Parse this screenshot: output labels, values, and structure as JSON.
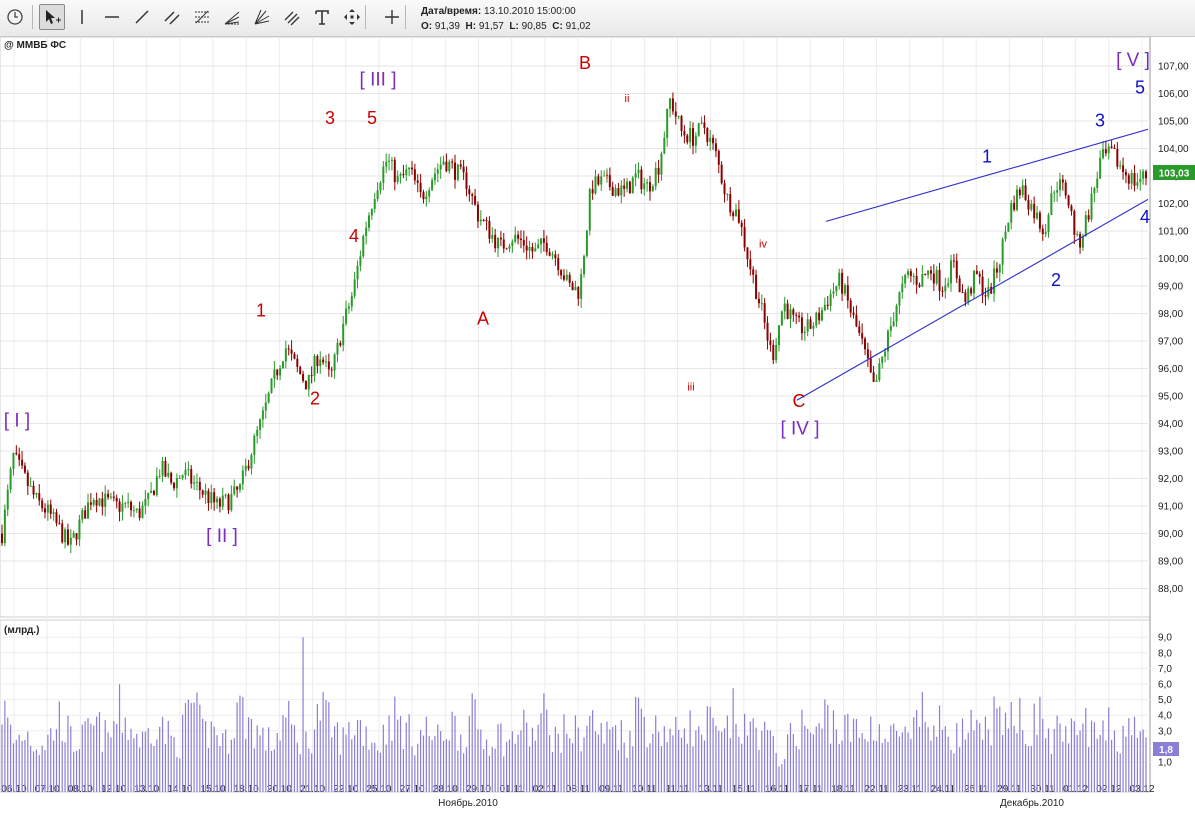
{
  "toolbar": {
    "tools": [
      {
        "name": "clock-icon"
      },
      {
        "name": "cursor-icon",
        "active": true
      },
      {
        "name": "vertical-line-icon"
      },
      {
        "name": "horizontal-line-icon"
      },
      {
        "name": "trend-line-icon"
      },
      {
        "name": "channel-icon"
      },
      {
        "name": "fibonacci-icon"
      },
      {
        "name": "fibonacci-fan-icon"
      },
      {
        "name": "gann-fan-icon"
      },
      {
        "name": "parallel-lines-icon"
      },
      {
        "name": "text-tool-icon"
      },
      {
        "name": "move-icon"
      },
      {
        "name": "crosshair-icon"
      }
    ],
    "datetime_label": "Дата/время:",
    "datetime_value": "13.10.2010 15:00:00",
    "o_label": "O:",
    "o_value": "91,39",
    "h_label": "H:",
    "h_value": "91,57",
    "l_label": "L:",
    "l_value": "90,85",
    "c_label": "C:",
    "c_value": "91,02"
  },
  "chart": {
    "instrument": "@ ММВБ ФС",
    "volume_label": "(млрд.)",
    "last_price": "103,03",
    "last_volume": "1,8",
    "colors": {
      "up": "#2a9a2a",
      "down": "#8b0000",
      "volume": "#8a7fd6",
      "waves_red": "#cc0000",
      "waves_blue": "#1010c8",
      "waves_purple": "#7a2ec0",
      "trendline": "#2b2bcc"
    }
  },
  "chart_data": {
    "type": "candlestick",
    "y_ticks": [
      "107,00",
      "106,00",
      "105,00",
      "104,00",
      "103,00",
      "102,00",
      "101,00",
      "100,00",
      "99,00",
      "98,00",
      "97,00",
      "96,00",
      "95,00",
      "94,00",
      "93,00",
      "92,00",
      "91,00",
      "90,00",
      "89,00",
      "88,00"
    ],
    "volume_ticks": [
      "9,0",
      "8,0",
      "7,0",
      "6,0",
      "5,0",
      "4,0",
      "3,0",
      "2,0",
      "1,0"
    ],
    "x_labels": [
      "06.10",
      "07.10",
      "08.10",
      "12.10",
      "13.10",
      "14.10",
      "15.10",
      "18.10",
      "20.10",
      "21.10",
      "22.10",
      "25.10",
      "27.10",
      "28.10",
      "29.10",
      "01.11",
      "02.11",
      "08.11",
      "09.11",
      "10.11",
      "11.11",
      "13.11",
      "15.11",
      "16.11",
      "17.11",
      "18.11",
      "22.11",
      "23.11",
      "24.11",
      "25.11",
      "29.11",
      "30.11",
      "01.12",
      "02.12",
      "03.12"
    ],
    "month_labels": [
      "Ноябрь.2010",
      "Декабрь.2010"
    ],
    "price_path": [
      90.0,
      92.8,
      92.0,
      91.2,
      90.8,
      90.2,
      89.5,
      90.5,
      91.4,
      91.2,
      91.0,
      91.0,
      90.7,
      91.2,
      92.4,
      91.8,
      92.2,
      91.8,
      91.4,
      91.0,
      91.2,
      91.6,
      93.0,
      94.2,
      95.6,
      96.8,
      96.0,
      95.4,
      96.6,
      95.6,
      97.4,
      98.8,
      101.0,
      102.6,
      103.6,
      102.8,
      103.2,
      102.2,
      103.0,
      103.6,
      103.2,
      102.8,
      101.6,
      101.0,
      100.4,
      100.8,
      100.6,
      100.2,
      100.6,
      100.0,
      99.0,
      98.8,
      102.6,
      102.8,
      102.6,
      102.4,
      103.0,
      102.6,
      103.4,
      105.8,
      104.6,
      104.4,
      104.8,
      103.8,
      102.2,
      101.6,
      99.8,
      98.2,
      96.4,
      98.4,
      97.6,
      97.4,
      97.8,
      98.6,
      99.2,
      98.0,
      96.8,
      95.2,
      96.8,
      98.4,
      99.4,
      99.2,
      99.6,
      99.0,
      99.8,
      98.4,
      99.4,
      98.6,
      99.8,
      101.8,
      102.6,
      101.8,
      101.0,
      102.8,
      102.4,
      100.4,
      101.8,
      103.6,
      103.8,
      103.2,
      102.8,
      103.0
    ],
    "volume_path": [
      4.6,
      2.2,
      3.0,
      2.0,
      2.5,
      4.0,
      2.1,
      2.6,
      3.3,
      2.4,
      4.2,
      3.0,
      2.3,
      3.8,
      2.7,
      2.0,
      4.9,
      2.8,
      3.1,
      2.2,
      4.6,
      3.5,
      2.6,
      2.1,
      3.9,
      2.5,
      2.2,
      4.4,
      3.0,
      2.4,
      3.6,
      2.8,
      2.0,
      4.1,
      3.2,
      2.5,
      3.0,
      2.4,
      3.6,
      2.6,
      3.9,
      2.3,
      2.9,
      2.1,
      3.3,
      2.6,
      4.0,
      2.4,
      3.1,
      2.7,
      3.7,
      2.5,
      3.4,
      2.2,
      4.7,
      2.9,
      3.2,
      2.6,
      3.8,
      2.4,
      3.5,
      2.2,
      4.0,
      2.8,
      3.3,
      2.5,
      1.0,
      2.7,
      3.4,
      2.5,
      4.3,
      2.9,
      3.1,
      2.6,
      3.7,
      2.3,
      3.0,
      2.1,
      4.2,
      2.8,
      3.6,
      2.5,
      3.2,
      2.4,
      3.9,
      2.7,
      5.1,
      2.8,
      4.0,
      2.3,
      3.4,
      2.6,
      3.7,
      2.2,
      3.3,
      2.5,
      4.2,
      1.8
    ],
    "wave_labels": [
      {
        "text": "[ I ]",
        "price": 93.9,
        "color": "purple",
        "tx": 17
      },
      {
        "text": "[ II ]",
        "price": 89.7,
        "color": "purple",
        "tx": 222
      },
      {
        "text": "[ III ]",
        "price": 106.3,
        "color": "purple",
        "tx": 378
      },
      {
        "text": "[ IV ]",
        "price": 93.6,
        "color": "purple",
        "tx": 800
      },
      {
        "text": "[ V ]",
        "price": 107.0,
        "color": "purple",
        "tx": 1133
      },
      {
        "text": "1",
        "price": 97.9,
        "color": "red",
        "tx": 261
      },
      {
        "text": "2",
        "price": 94.7,
        "color": "red",
        "tx": 315
      },
      {
        "text": "3",
        "price": 104.9,
        "color": "red",
        "tx": 330
      },
      {
        "text": "4",
        "price": 100.6,
        "color": "red",
        "tx": 354
      },
      {
        "text": "5",
        "price": 104.9,
        "color": "red",
        "tx": 372
      },
      {
        "text": "A",
        "price": 97.6,
        "color": "red",
        "tx": 483
      },
      {
        "text": "B",
        "price": 106.9,
        "color": "red",
        "tx": 585
      },
      {
        "text": "C",
        "price": 94.6,
        "color": "red",
        "tx": 799
      },
      {
        "text": "i",
        "price": 102.9,
        "color": "red-small",
        "tx": 607
      },
      {
        "text": "ii",
        "price": 105.7,
        "color": "red-small",
        "tx": 627
      },
      {
        "text": "iii",
        "price": 95.2,
        "color": "red-small",
        "tx": 691
      },
      {
        "text": "iv",
        "price": 100.4,
        "color": "red-small",
        "tx": 763
      },
      {
        "text": "1",
        "price": 103.5,
        "color": "blue",
        "tx": 987
      },
      {
        "text": "2",
        "price": 99.0,
        "color": "blue",
        "tx": 1056
      },
      {
        "text": "3",
        "price": 104.8,
        "color": "blue",
        "tx": 1100
      },
      {
        "text": "4",
        "price": 101.3,
        "color": "blue",
        "tx": 1145
      },
      {
        "text": "5",
        "price": 106.0,
        "color": "blue",
        "tx": 1140
      }
    ],
    "trendlines": [
      {
        "from": {
          "t": 826,
          "price": 101.35
        },
        "to": {
          "t": 1148,
          "price": 104.7
        }
      },
      {
        "from": {
          "t": 797,
          "price": 94.85
        },
        "to": {
          "t": 1148,
          "price": 102.15
        }
      }
    ]
  }
}
